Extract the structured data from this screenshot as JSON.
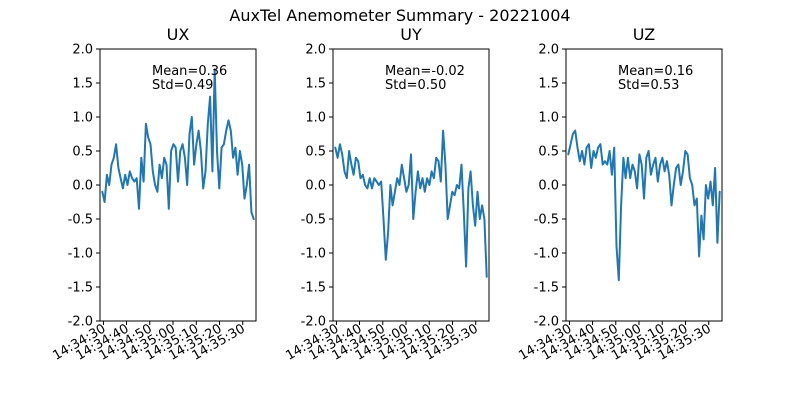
{
  "figure": {
    "suptitle": "AuxTel Anemometer Summary - 20221004"
  },
  "chart_data": [
    {
      "type": "line",
      "title": "UX",
      "xlabel": "",
      "ylabel": "",
      "ylim": [
        -2.0,
        2.0
      ],
      "yticks": [
        "-2.0",
        "-1.5",
        "-1.0",
        "-0.5",
        "0.0",
        "0.5",
        "1.0",
        "1.5",
        "2.0"
      ],
      "x_ticks": [
        "14:34:30",
        "14:34:40",
        "14:34:50",
        "14:35:00",
        "14:35:10",
        "14:35:20",
        "14:35:30"
      ],
      "xlim": [
        0,
        68
      ],
      "grid": false,
      "color": "#1f77b4",
      "annotations": {
        "mean": "Mean=0.36",
        "std": "Std=0.49"
      },
      "x": [
        1,
        2,
        3,
        4,
        5,
        6,
        7,
        8,
        9,
        10,
        11,
        12,
        13,
        14,
        15,
        16,
        17,
        18,
        19,
        20,
        21,
        22,
        23,
        24,
        25,
        26,
        27,
        28,
        29,
        30,
        31,
        32,
        33,
        34,
        35,
        36,
        37,
        38,
        39,
        40,
        41,
        42,
        43,
        44,
        45,
        46,
        47,
        48,
        49,
        50,
        51,
        52,
        53,
        54,
        55,
        56,
        57,
        58,
        59,
        60,
        61,
        62,
        63,
        64,
        65,
        66,
        67
      ],
      "values": [
        -0.1,
        -0.25,
        0.15,
        0.0,
        0.3,
        0.4,
        0.6,
        0.25,
        0.1,
        -0.05,
        0.15,
        0.0,
        0.2,
        0.1,
        0.05,
        0.1,
        -0.35,
        0.4,
        0.05,
        0.9,
        0.7,
        0.6,
        0.2,
        0.0,
        -0.1,
        0.3,
        0.1,
        0.4,
        0.3,
        -0.35,
        0.5,
        0.6,
        0.55,
        0.05,
        0.5,
        0.6,
        0.4,
        0.0,
        0.75,
        1.0,
        0.3,
        0.6,
        0.8,
        0.5,
        -0.05,
        0.2,
        0.9,
        1.3,
        0.2,
        1.7,
        0.5,
        -0.05,
        0.55,
        0.6,
        0.8,
        0.95,
        0.8,
        0.4,
        0.55,
        0.15,
        0.5,
        0.3,
        -0.2,
        0.0,
        0.3,
        -0.4,
        -0.5
      ]
    },
    {
      "type": "line",
      "title": "UY",
      "xlabel": "",
      "ylabel": "",
      "ylim": [
        -2.0,
        2.0
      ],
      "yticks": [
        "-2.0",
        "-1.5",
        "-1.0",
        "-0.5",
        "0.0",
        "0.5",
        "1.0",
        "1.5",
        "2.0"
      ],
      "x_ticks": [
        "14:34:30",
        "14:34:40",
        "14:34:50",
        "14:35:00",
        "14:35:10",
        "14:35:20",
        "14:35:30"
      ],
      "xlim": [
        0,
        68
      ],
      "grid": false,
      "color": "#1f77b4",
      "annotations": {
        "mean": "Mean=-0.02",
        "std": "Std=0.50"
      },
      "x": [
        1,
        2,
        3,
        4,
        5,
        6,
        7,
        8,
        9,
        10,
        11,
        12,
        13,
        14,
        15,
        16,
        17,
        18,
        19,
        20,
        21,
        22,
        23,
        24,
        25,
        26,
        27,
        28,
        29,
        30,
        31,
        32,
        33,
        34,
        35,
        36,
        37,
        38,
        39,
        40,
        41,
        42,
        43,
        44,
        45,
        46,
        47,
        48,
        49,
        50,
        51,
        52,
        53,
        54,
        55,
        56,
        57,
        58,
        59,
        60,
        61,
        62,
        63,
        64,
        65,
        66,
        67
      ],
      "values": [
        0.55,
        0.4,
        0.6,
        0.45,
        0.2,
        0.1,
        0.5,
        0.3,
        0.15,
        0.4,
        0.35,
        0.1,
        0.15,
        0.0,
        -0.05,
        0.1,
        -0.05,
        0.1,
        0.05,
        0.0,
        0.05,
        -0.5,
        -1.1,
        -0.7,
        0.0,
        -0.3,
        -0.1,
        0.1,
        0.0,
        0.3,
        0.1,
        -0.1,
        0.0,
        0.45,
        -0.5,
        -0.1,
        0.2,
        -0.05,
        0.1,
        -0.1,
        0.1,
        0.0,
        0.2,
        0.1,
        0.4,
        0.35,
        0.05,
        0.8,
        0.3,
        -0.5,
        -0.3,
        -0.1,
        -0.15,
        0.0,
        -0.05,
        0.3,
        -0.4,
        -1.2,
        -0.05,
        0.2,
        -0.3,
        -0.6,
        -0.1,
        -0.5,
        -0.3,
        -0.5,
        -1.35
      ]
    },
    {
      "type": "line",
      "title": "UZ",
      "xlabel": "",
      "ylabel": "",
      "ylim": [
        -2.0,
        2.0
      ],
      "yticks": [
        "-2.0",
        "-1.5",
        "-1.0",
        "-0.5",
        "0.0",
        "0.5",
        "1.0",
        "1.5",
        "2.0"
      ],
      "x_ticks": [
        "14:34:30",
        "14:34:40",
        "14:34:50",
        "14:35:00",
        "14:35:10",
        "14:35:20",
        "14:35:30"
      ],
      "xlim": [
        0,
        68
      ],
      "grid": false,
      "color": "#1f77b4",
      "annotations": {
        "mean": "Mean=0.16",
        "std": "Std=0.53"
      },
      "x": [
        1,
        2,
        3,
        4,
        5,
        6,
        7,
        8,
        9,
        10,
        11,
        12,
        13,
        14,
        15,
        16,
        17,
        18,
        19,
        20,
        21,
        22,
        23,
        24,
        25,
        26,
        27,
        28,
        29,
        30,
        31,
        32,
        33,
        34,
        35,
        36,
        37,
        38,
        39,
        40,
        41,
        42,
        43,
        44,
        45,
        46,
        47,
        48,
        49,
        50,
        51,
        52,
        53,
        54,
        55,
        56,
        57,
        58,
        59,
        60,
        61,
        62,
        63,
        64,
        65,
        66,
        67
      ],
      "values": [
        0.45,
        0.6,
        0.75,
        0.8,
        0.55,
        0.35,
        0.5,
        0.3,
        0.55,
        0.6,
        0.25,
        0.5,
        0.4,
        0.55,
        0.6,
        0.3,
        0.35,
        0.3,
        0.5,
        0.15,
        0.55,
        -0.9,
        -1.4,
        -0.3,
        0.4,
        0.1,
        0.4,
        0.1,
        0.3,
        0.2,
        -0.05,
        0.45,
        0.3,
        -0.2,
        0.4,
        0.5,
        0.15,
        0.3,
        0.4,
        0.05,
        0.3,
        0.4,
        0.2,
        0.35,
        0.15,
        -0.3,
        0.0,
        0.25,
        0.3,
        0.0,
        0.2,
        0.5,
        0.45,
        0.1,
        0.0,
        -0.3,
        -0.2,
        -1.05,
        -0.45,
        -0.8,
        0.0,
        -0.2,
        0.05,
        -0.3,
        0.25,
        -0.85,
        -0.1
      ]
    }
  ]
}
